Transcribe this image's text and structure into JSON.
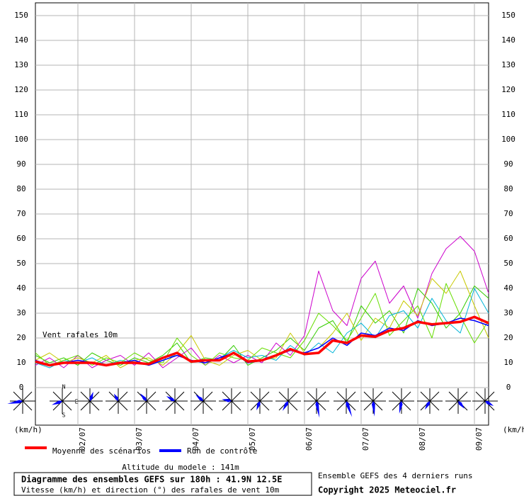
{
  "chart_data": {
    "type": "line",
    "title": "Diagramme des ensembles GEFS sur 180h : 41.9N 12.5E",
    "subtitle": "Vitesse (km/h) et direction (°) des rafales de vent 10m",
    "annotation": "Vent rafales 10m",
    "y_unit_left": "(km/h)",
    "y_unit_right": "(km/h)",
    "compass": {
      "n": "N",
      "s": "S",
      "e": "E"
    },
    "altitude": "Altitude du modele : 141m",
    "runs_note": "Ensemble GEFS des 4 derniers runs",
    "copyright": "Copyright 2025 Meteociel.fr",
    "x": [
      0,
      2,
      4,
      6,
      8,
      10,
      12,
      14,
      16,
      18,
      20,
      22,
      24,
      26,
      28,
      30,
      32,
      34,
      36,
      38,
      40,
      42,
      44,
      46,
      48,
      50,
      52,
      54,
      56,
      58,
      60,
      62,
      64
    ],
    "xlim": [
      0,
      64
    ],
    "xticks": [
      {
        "value": 6,
        "label": "02/07"
      },
      {
        "value": 14,
        "label": "03/07"
      },
      {
        "value": 22,
        "label": "04/07"
      },
      {
        "value": 30,
        "label": "05/07"
      },
      {
        "value": 38,
        "label": "06/07"
      },
      {
        "value": 46,
        "label": "07/07"
      },
      {
        "value": 54,
        "label": "08/07"
      },
      {
        "value": 62,
        "label": "09/07"
      }
    ],
    "ylim": [
      0,
      155
    ],
    "yticks": [
      0,
      10,
      20,
      30,
      40,
      50,
      60,
      70,
      80,
      90,
      100,
      110,
      120,
      130,
      140,
      150
    ],
    "grid": true,
    "members": [
      {
        "color": "#33cc00",
        "values": [
          13,
          10,
          12,
          9,
          14,
          11,
          9,
          12,
          10,
          13,
          18,
          10,
          12,
          11,
          17,
          9,
          12,
          15,
          20,
          15,
          24,
          27,
          18,
          33,
          26,
          31,
          22,
          40,
          34,
          24,
          30,
          41,
          36
        ]
      },
      {
        "color": "#cc00cc",
        "values": [
          9,
          12,
          8,
          13,
          8,
          11,
          13,
          9,
          14,
          8,
          12,
          16,
          9,
          13,
          10,
          13,
          10,
          18,
          13,
          21,
          47,
          31,
          25,
          44,
          51,
          34,
          41,
          28,
          46,
          56,
          61,
          55,
          38
        ]
      },
      {
        "color": "#c8c800",
        "values": [
          11,
          14,
          10,
          12,
          10,
          13,
          8,
          11,
          12,
          9,
          14,
          21,
          11,
          9,
          13,
          15,
          11,
          12,
          22,
          14,
          16,
          22,
          30,
          19,
          28,
          24,
          35,
          29,
          44,
          38,
          47,
          33,
          20
        ]
      },
      {
        "color": "#00b4d8",
        "values": [
          10,
          8,
          11,
          10,
          12,
          9,
          11,
          10,
          9,
          12,
          13,
          11,
          10,
          12,
          15,
          12,
          13,
          11,
          17,
          13,
          18,
          14,
          22,
          26,
          20,
          29,
          31,
          24,
          36,
          27,
          22,
          40,
          30
        ]
      },
      {
        "color": "#66dd00",
        "values": [
          14,
          9,
          11,
          13,
          9,
          12,
          10,
          14,
          11,
          10,
          20,
          13,
          9,
          14,
          12,
          11,
          16,
          14,
          12,
          19,
          30,
          25,
          19,
          28,
          38,
          21,
          27,
          33,
          20,
          42,
          29,
          18,
          27
        ]
      }
    ],
    "series": [
      {
        "name": "Run de contrôle",
        "color": "#0000ff",
        "values": [
          11,
          9,
          10,
          11,
          10,
          9,
          10,
          11,
          9,
          11,
          13,
          11,
          10,
          12,
          14,
          10,
          11,
          13,
          15,
          14,
          16,
          20,
          17,
          22,
          21,
          24,
          23,
          27,
          25,
          26,
          28,
          27,
          25
        ]
      },
      {
        "name": "Moyenne des scénarios",
        "color": "#ff0000",
        "values": [
          10.5,
          9,
          10,
          10,
          10,
          9,
          10,
          10,
          9.5,
          12,
          14,
          10.5,
          11,
          11,
          14,
          10.5,
          11,
          13,
          15.5,
          13.5,
          14,
          19,
          18,
          21,
          20.5,
          23,
          24,
          26.5,
          25.5,
          26,
          26.5,
          28.5,
          26
        ]
      }
    ]
  }
}
